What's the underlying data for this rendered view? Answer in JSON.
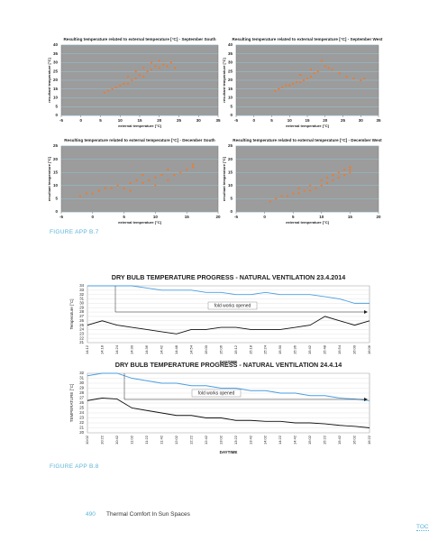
{
  "chart_data": [
    {
      "type": "scatter",
      "title": "Resulting temperature related to external temperature  [°C] - September South",
      "x_label": "external temperature [°C]",
      "y_label": "resultant temperature [°C]",
      "color": "#f07a2a",
      "x": [
        6,
        7,
        8,
        9,
        10,
        11,
        12,
        12,
        13,
        14,
        14,
        15,
        16,
        16,
        17,
        18,
        18,
        19,
        20,
        20,
        21,
        22,
        23,
        24
      ],
      "values": [
        13,
        14,
        15,
        16,
        17,
        18,
        18,
        22,
        20,
        21,
        25,
        23,
        22,
        27,
        25,
        26,
        30,
        28,
        27,
        31,
        29,
        28,
        30,
        27
      ],
      "xlim": [
        -5,
        35
      ],
      "xticks": [
        -5,
        0,
        5,
        10,
        15,
        20,
        25,
        30,
        35
      ],
      "ylim": [
        0,
        40
      ],
      "yticks": [
        0,
        5,
        10,
        15,
        20,
        25,
        30,
        35,
        40
      ],
      "grid": true
    },
    {
      "type": "scatter",
      "title": "Resulting temperature related to external temperature  [°C] - September West",
      "x_label": "external temperature [°C]",
      "y_label": "resultant temperature [°C]",
      "color": "#f07a2a",
      "x": [
        6,
        7,
        8,
        9,
        10,
        11,
        12,
        13,
        13,
        14,
        15,
        16,
        16,
        17,
        18,
        19,
        20,
        21,
        22,
        24,
        26,
        28,
        30,
        31
      ],
      "values": [
        14,
        15,
        16,
        17,
        17,
        18,
        19,
        19,
        23,
        20,
        21,
        22,
        26,
        24,
        25,
        31,
        28,
        27,
        26,
        24,
        22,
        21,
        20,
        21
      ],
      "xlim": [
        -5,
        35
      ],
      "xticks": [
        -5,
        0,
        5,
        10,
        15,
        20,
        25,
        30,
        35
      ],
      "ylim": [
        0,
        40
      ],
      "yticks": [
        0,
        5,
        10,
        15,
        20,
        25,
        30,
        35,
        40
      ],
      "grid": true
    },
    {
      "type": "scatter",
      "title": "Resulting temperature related to external temperature  [°C] - December South",
      "x_label": "external temperature [°C]",
      "y_label": "resultant temperature [°C]",
      "color": "#f07a2a",
      "x": [
        -2,
        -1,
        0,
        1,
        2,
        3,
        4,
        5,
        6,
        6,
        7,
        8,
        8,
        9,
        10,
        10,
        11,
        12,
        12,
        13,
        14,
        15,
        16,
        16
      ],
      "values": [
        6,
        7,
        7,
        8,
        9,
        9,
        10,
        9,
        11,
        8,
        12,
        11,
        14,
        12,
        13,
        10,
        14,
        12,
        16,
        14,
        15,
        16,
        17,
        18
      ],
      "xlim": [
        -5,
        20
      ],
      "xticks": [
        -5,
        0,
        5,
        10,
        15,
        20
      ],
      "ylim": [
        0,
        25
      ],
      "yticks": [
        0,
        5,
        10,
        15,
        20,
        25
      ],
      "grid": true
    },
    {
      "type": "scatter",
      "title": "Resulting temperature related to external temperature  [°C] - December West",
      "x_label": "external temperature [°C]",
      "y_label": "resultant temperature [°C]",
      "color": "#f07a2a",
      "x": [
        1,
        2,
        3,
        4,
        5,
        6,
        6,
        7,
        8,
        8,
        9,
        10,
        10,
        11,
        11,
        12,
        12,
        13,
        13,
        14,
        14,
        15,
        15,
        15
      ],
      "values": [
        4,
        5,
        6,
        6,
        7,
        7,
        9,
        8,
        8,
        10,
        9,
        10,
        12,
        11,
        13,
        12,
        14,
        13,
        15,
        14,
        16,
        15,
        16,
        17
      ],
      "xlim": [
        -5,
        20
      ],
      "xticks": [
        -5,
        0,
        5,
        10,
        15,
        20
      ],
      "ylim": [
        0,
        25
      ],
      "yticks": [
        0,
        5,
        10,
        15,
        20,
        25
      ],
      "grid": true
    },
    {
      "type": "line",
      "title": "DRY BULB TEMPERATURE PROGRESS  - NATURAL VENTILATION 23.4.2014",
      "x_label": "DAYTIME",
      "y_label": "Temperature [°C]",
      "annotation": "fold works opened",
      "categories": [
        "14:12",
        "14:18",
        "14:24",
        "14:30",
        "14:36",
        "14:42",
        "14:48",
        "14:54",
        "15:00",
        "15:06",
        "15:12",
        "15:18",
        "15:24",
        "15:30",
        "15:36",
        "15:42",
        "15:48",
        "15:54",
        "16:00",
        "16:06"
      ],
      "series": [
        {
          "color": "#4a9ee0",
          "values": [
            34,
            34,
            34,
            34,
            33.5,
            33,
            33,
            33,
            32.5,
            32.5,
            32,
            32,
            32.5,
            32,
            32,
            32,
            31.5,
            31,
            30,
            30
          ]
        },
        {
          "color": "#111111",
          "values": [
            25,
            26,
            25,
            24.5,
            24,
            23.5,
            23,
            24,
            24,
            24.5,
            24.5,
            24,
            24,
            24,
            24.5,
            25,
            27,
            26,
            25,
            26
          ]
        }
      ],
      "ylim": [
        21,
        34
      ],
      "yticks": [
        21,
        22,
        23,
        24,
        25,
        26,
        27,
        28,
        29,
        30,
        31,
        32,
        33,
        34
      ],
      "grid": true
    },
    {
      "type": "line",
      "title": "DRY BULB TEMPERATURE PROGRESS  - NATURAL VENTILATION 24.4.14",
      "x_label": "DAYTIME",
      "y_label": "TEMPERATURE [°C]",
      "annotation": "fold works opened",
      "categories": [
        "10:02",
        "10:22",
        "10:42",
        "11:02",
        "11:22",
        "11:42",
        "12:02",
        "12:22",
        "12:42",
        "13:02",
        "13:22",
        "13:42",
        "14:02",
        "14:22",
        "14:42",
        "15:02",
        "15:22",
        "15:42",
        "16:02",
        "16:22"
      ],
      "series": [
        {
          "color": "#4a9ee0",
          "values": [
            31.5,
            32,
            32,
            31,
            30.5,
            30,
            30,
            29.5,
            29.5,
            29,
            29,
            28.5,
            28.5,
            28,
            28,
            27.5,
            27.5,
            27,
            26.8,
            26.5
          ]
        },
        {
          "color": "#111111",
          "values": [
            26.5,
            27,
            26.8,
            25,
            24.5,
            24,
            23.5,
            23.5,
            23,
            23,
            22.5,
            22.5,
            22.3,
            22.3,
            22,
            22,
            21.8,
            21.5,
            21.3,
            21
          ]
        }
      ],
      "ylim": [
        20,
        32
      ],
      "yticks": [
        20,
        21,
        22,
        23,
        24,
        25,
        26,
        27,
        28,
        29,
        30,
        31,
        32
      ],
      "grid": true
    }
  ],
  "captions": [
    "FIGURE APP B.7",
    "FIGURE APP B.8"
  ],
  "footer": {
    "page_number": "490",
    "title": "Thermal Comfort In Sun Spaces",
    "link": "TOC"
  }
}
